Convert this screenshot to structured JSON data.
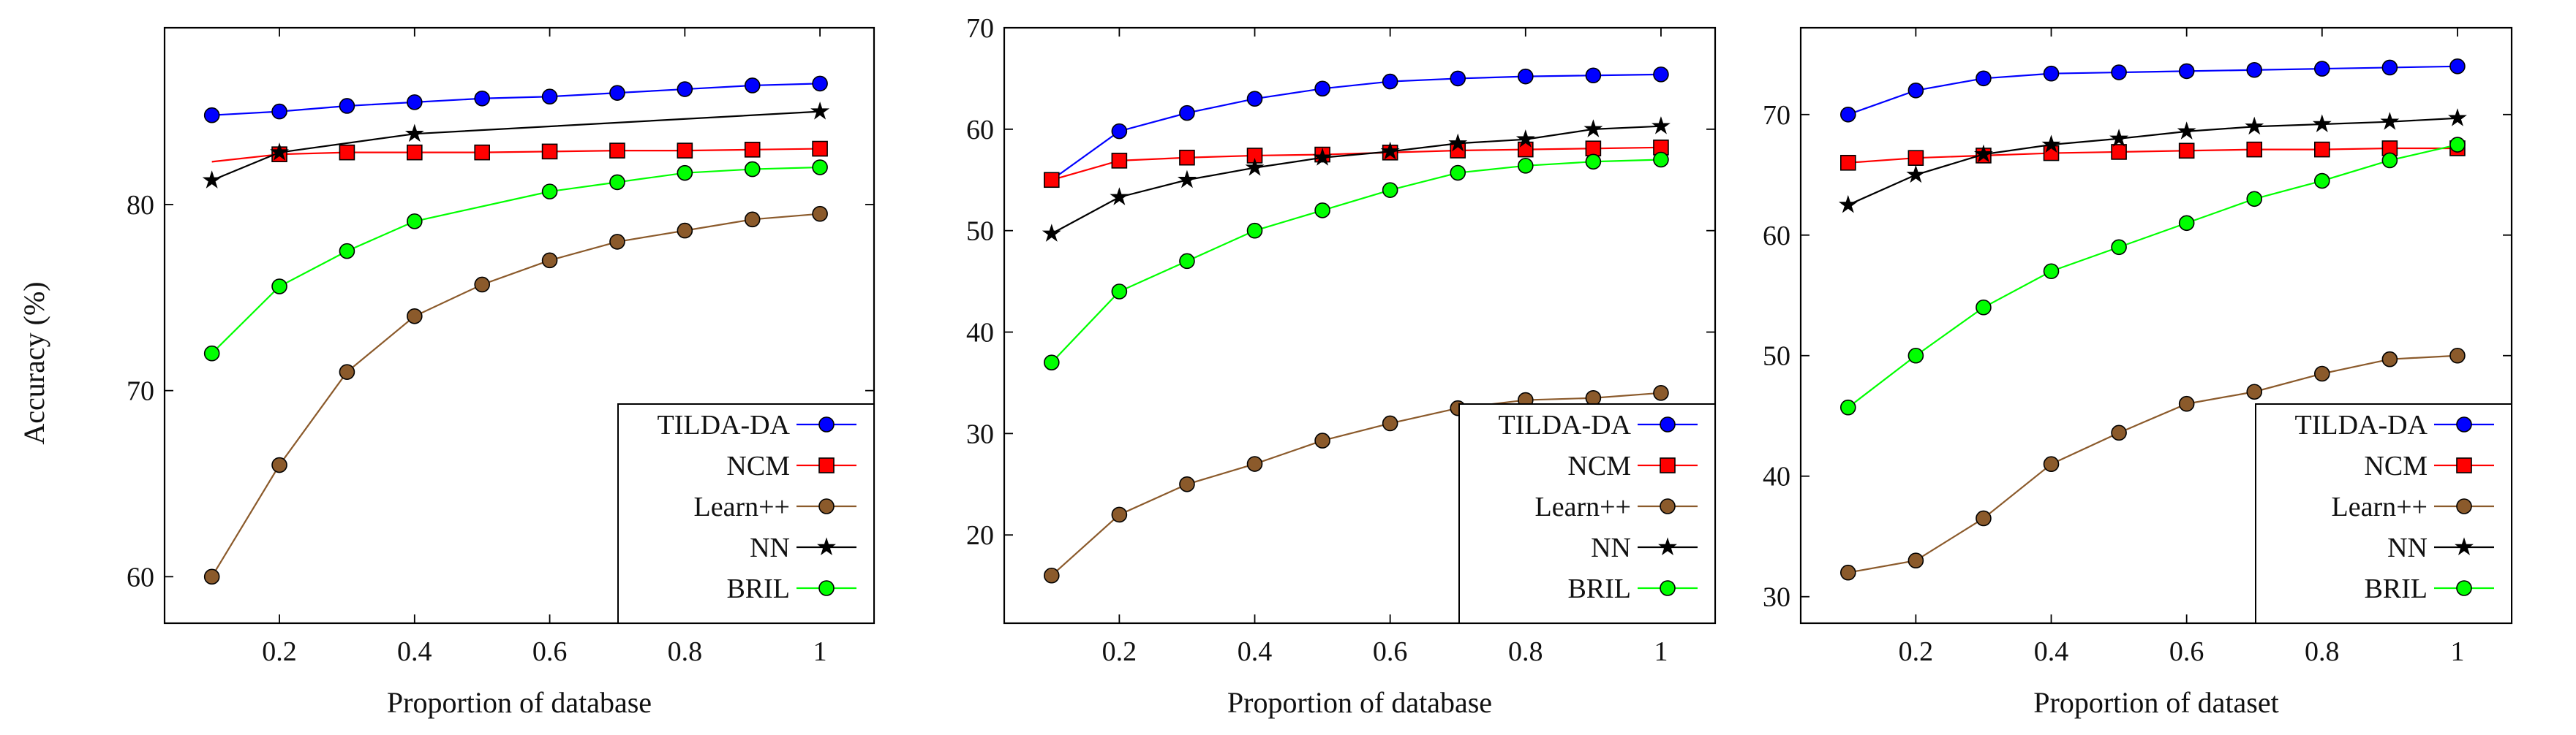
{
  "figure": {
    "ylabel": "Accuracy (%)"
  },
  "chart_data": [
    {
      "type": "line",
      "title": "",
      "xlabel": "Proportion of database",
      "ylabel": "Accuracy (%)",
      "xlim": [
        0.03,
        1.08
      ],
      "ylim": [
        57.5,
        89.5
      ],
      "xticks": [
        0.2,
        0.4,
        0.6,
        0.8,
        1
      ],
      "xtick_labels": [
        "0.2",
        "0.4",
        "0.6",
        "0.8",
        "1"
      ],
      "yticks": [
        60,
        70,
        80
      ],
      "ytick_labels": [
        "60",
        "70",
        "80"
      ],
      "legend_position": "bottom-right",
      "series": [
        {
          "name": "TILDA-DA",
          "color": "#0000ff",
          "marker": "circle",
          "markers_from": 0,
          "x": [
            0.1,
            0.2,
            0.3,
            0.4,
            0.5,
            0.6,
            0.7,
            0.8,
            0.9,
            1.0
          ],
          "y": [
            84.8,
            85.0,
            85.3,
            85.5,
            85.7,
            85.8,
            86.0,
            86.2,
            86.4,
            86.5
          ]
        },
        {
          "name": "NCM",
          "color": "#ff0000",
          "marker": "square",
          "markers_from": 1,
          "x": [
            0.1,
            0.2,
            0.3,
            0.4,
            0.5,
            0.6,
            0.7,
            0.8,
            0.9,
            1.0
          ],
          "y": [
            82.3,
            82.7,
            82.8,
            82.8,
            82.8,
            82.85,
            82.9,
            82.9,
            82.95,
            83.0
          ]
        },
        {
          "name": "Learn++",
          "color": "#8b5a2b",
          "marker": "circle",
          "markers_from": 0,
          "x": [
            0.1,
            0.2,
            0.3,
            0.4,
            0.5,
            0.6,
            0.7,
            0.8,
            0.9,
            1.0
          ],
          "y": [
            60.0,
            66.0,
            71.0,
            74.0,
            75.7,
            77.0,
            78.0,
            78.6,
            79.2,
            79.5
          ]
        },
        {
          "name": "NN",
          "color": "#000000",
          "marker": "star",
          "markers_from": 0,
          "x": [
            0.1,
            0.2,
            0.4,
            1.0
          ],
          "y": [
            81.3,
            82.8,
            83.8,
            85.0
          ]
        },
        {
          "name": "BRIL",
          "color": "#00ff00",
          "marker": "circle",
          "markers_from": 0,
          "x": [
            0.1,
            0.2,
            0.3,
            0.4,
            0.6,
            0.7,
            0.8,
            0.9,
            1.0
          ],
          "y": [
            72.0,
            75.6,
            77.5,
            79.1,
            80.7,
            81.2,
            81.7,
            81.9,
            82.0
          ]
        }
      ]
    },
    {
      "type": "line",
      "title": "",
      "xlabel": "Proportion of database",
      "ylabel": "",
      "xlim": [
        0.03,
        1.08
      ],
      "ylim": [
        11.3,
        70
      ],
      "xticks": [
        0.2,
        0.4,
        0.6,
        0.8,
        1
      ],
      "xtick_labels": [
        "0.2",
        "0.4",
        "0.6",
        "0.8",
        "1"
      ],
      "yticks": [
        20,
        30,
        40,
        50,
        60,
        70
      ],
      "ytick_labels": [
        "20",
        "30",
        "40",
        "50",
        "60",
        "70"
      ],
      "legend_position": "bottom-right",
      "series": [
        {
          "name": "TILDA-DA",
          "color": "#0000ff",
          "marker": "circle",
          "markers_from": 0,
          "x": [
            0.1,
            0.2,
            0.3,
            0.4,
            0.5,
            0.6,
            0.7,
            0.8,
            0.9,
            1.0
          ],
          "y": [
            55.0,
            59.8,
            61.6,
            63.0,
            64.0,
            64.7,
            65.0,
            65.2,
            65.3,
            65.4
          ]
        },
        {
          "name": "NCM",
          "color": "#ff0000",
          "marker": "square",
          "markers_from": 0,
          "x": [
            0.1,
            0.2,
            0.3,
            0.4,
            0.5,
            0.6,
            0.7,
            0.8,
            0.9,
            1.0
          ],
          "y": [
            55.0,
            56.9,
            57.2,
            57.4,
            57.5,
            57.7,
            57.9,
            58.0,
            58.1,
            58.2
          ]
        },
        {
          "name": "Learn++",
          "color": "#8b5a2b",
          "marker": "circle",
          "markers_from": 0,
          "x": [
            0.1,
            0.2,
            0.3,
            0.4,
            0.5,
            0.6,
            0.7,
            0.8,
            0.9,
            1.0
          ],
          "y": [
            16.0,
            22.0,
            25.0,
            27.0,
            29.3,
            31.0,
            32.5,
            33.3,
            33.5,
            34.0
          ]
        },
        {
          "name": "NN",
          "color": "#000000",
          "marker": "star",
          "markers_from": 0,
          "x": [
            0.1,
            0.2,
            0.3,
            0.4,
            0.5,
            0.6,
            0.7,
            0.8,
            0.9,
            1.0
          ],
          "y": [
            49.7,
            53.3,
            55.0,
            56.2,
            57.2,
            57.8,
            58.6,
            59.0,
            60.0,
            60.3
          ]
        },
        {
          "name": "BRIL",
          "color": "#00ff00",
          "marker": "circle",
          "markers_from": 0,
          "x": [
            0.1,
            0.2,
            0.3,
            0.4,
            0.5,
            0.6,
            0.7,
            0.8,
            0.9,
            1.0
          ],
          "y": [
            37.0,
            44.0,
            47.0,
            50.0,
            52.0,
            54.0,
            55.7,
            56.4,
            56.8,
            57.0
          ]
        }
      ]
    },
    {
      "type": "line",
      "title": "",
      "xlabel": "Proportion of dataset",
      "ylabel": "",
      "xlim": [
        0.03,
        1.08
      ],
      "ylim": [
        27.8,
        77.2
      ],
      "xticks": [
        0.2,
        0.4,
        0.6,
        0.8,
        1
      ],
      "xtick_labels": [
        "0.2",
        "0.4",
        "0.6",
        "0.8",
        "1"
      ],
      "yticks": [
        30,
        40,
        50,
        60,
        70
      ],
      "ytick_labels": [
        "30",
        "40",
        "50",
        "60",
        "70"
      ],
      "legend_position": "bottom-right",
      "series": [
        {
          "name": "TILDA-DA",
          "color": "#0000ff",
          "marker": "circle",
          "markers_from": 0,
          "x": [
            0.1,
            0.2,
            0.3,
            0.4,
            0.5,
            0.6,
            0.7,
            0.8,
            0.9,
            1.0
          ],
          "y": [
            70.0,
            72.0,
            73.0,
            73.4,
            73.5,
            73.6,
            73.7,
            73.8,
            73.9,
            74.0
          ]
        },
        {
          "name": "NCM",
          "color": "#ff0000",
          "marker": "square",
          "markers_from": 0,
          "x": [
            0.1,
            0.2,
            0.3,
            0.4,
            0.5,
            0.6,
            0.7,
            0.8,
            0.9,
            1.0
          ],
          "y": [
            66.0,
            66.4,
            66.6,
            66.8,
            66.9,
            67.0,
            67.1,
            67.1,
            67.2,
            67.2
          ]
        },
        {
          "name": "Learn++",
          "color": "#8b5a2b",
          "marker": "circle",
          "markers_from": 0,
          "x": [
            0.1,
            0.2,
            0.3,
            0.4,
            0.5,
            0.6,
            0.7,
            0.8,
            0.9,
            1.0
          ],
          "y": [
            32.0,
            33.0,
            36.5,
            41.0,
            43.6,
            46.0,
            47.0,
            48.5,
            49.7,
            50.0
          ]
        },
        {
          "name": "NN",
          "color": "#000000",
          "marker": "star",
          "markers_from": 0,
          "x": [
            0.1,
            0.2,
            0.3,
            0.4,
            0.5,
            0.6,
            0.7,
            0.8,
            0.9,
            1.0
          ],
          "y": [
            62.5,
            65.0,
            66.7,
            67.5,
            68.0,
            68.6,
            69.0,
            69.2,
            69.4,
            69.7
          ]
        },
        {
          "name": "BRIL",
          "color": "#00ff00",
          "marker": "circle",
          "markers_from": 0,
          "x": [
            0.1,
            0.2,
            0.3,
            0.4,
            0.5,
            0.6,
            0.7,
            0.8,
            0.9,
            1.0
          ],
          "y": [
            45.7,
            50.0,
            54.0,
            57.0,
            59.0,
            61.0,
            63.0,
            64.5,
            66.2,
            67.5
          ]
        }
      ]
    }
  ]
}
